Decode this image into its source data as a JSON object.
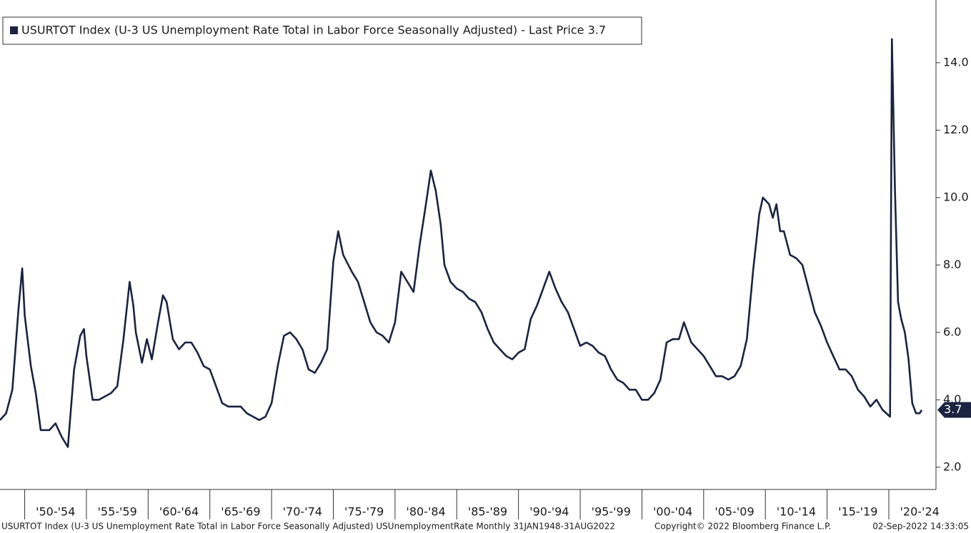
{
  "chart_data": {
    "type": "line",
    "legend_text": "USURTOT Index (U-3 US Unemployment Rate Total in Labor Force Seasonally Adjusted) - Last Price 3.7",
    "footer_left": "USURTOT Index (U-3 US Unemployment Rate Total in Labor Force Seasonally Adjusted) USUnemploymentRate  Monthly 31JAN1948-31AUG2022",
    "footer_mid": "Copyright© 2022 Bloomberg Finance L.P.",
    "footer_right": "02-Sep-2022 14:33:05",
    "last_price_label": "3.7",
    "color": "#1b2340",
    "xlim": [
      1948.0,
      2025.5
    ],
    "ylim": [
      1.34,
      15.86
    ],
    "xticks": [
      {
        "value": 1950,
        "label": "'50-'54"
      },
      {
        "value": 1955,
        "label": "'55-'59"
      },
      {
        "value": 1960,
        "label": "'60-'64"
      },
      {
        "value": 1965,
        "label": "'65-'69"
      },
      {
        "value": 1970,
        "label": "'70-'74"
      },
      {
        "value": 1975,
        "label": "'75-'79"
      },
      {
        "value": 1980,
        "label": "'80-'84"
      },
      {
        "value": 1985,
        "label": "'85-'89"
      },
      {
        "value": 1990,
        "label": "'90-'94"
      },
      {
        "value": 1995,
        "label": "'95-'99"
      },
      {
        "value": 2000,
        "label": "'00-'04"
      },
      {
        "value": 2005,
        "label": "'05-'09"
      },
      {
        "value": 2010,
        "label": "'10-'14"
      },
      {
        "value": 2015,
        "label": "'15-'19"
      },
      {
        "value": 2020,
        "label": "'20-'24"
      }
    ],
    "yticks": [
      {
        "value": 2,
        "label": "2.0"
      },
      {
        "value": 4,
        "label": "4.0"
      },
      {
        "value": 6,
        "label": "6.0"
      },
      {
        "value": 8,
        "label": "8.0"
      },
      {
        "value": 10,
        "label": "10.0"
      },
      {
        "value": 12,
        "label": "12.0"
      },
      {
        "value": 14,
        "label": "14.0"
      }
    ],
    "x": [
      1948.0,
      1948.5,
      1949.0,
      1949.5,
      1949.8,
      1950.0,
      1950.5,
      1950.9,
      1951.3,
      1952.0,
      1952.5,
      1953.0,
      1953.5,
      1954.0,
      1954.5,
      1954.8,
      1955.0,
      1955.5,
      1956.0,
      1956.5,
      1957.0,
      1957.5,
      1958.0,
      1958.5,
      1958.8,
      1959.0,
      1959.5,
      1959.9,
      1960.3,
      1960.8,
      1961.2,
      1961.5,
      1962.0,
      1962.5,
      1963.0,
      1963.5,
      1964.0,
      1964.5,
      1965.0,
      1965.5,
      1966.0,
      1966.5,
      1967.0,
      1967.5,
      1968.0,
      1968.5,
      1969.0,
      1969.5,
      1970.0,
      1970.5,
      1971.0,
      1971.5,
      1972.0,
      1972.5,
      1973.0,
      1973.5,
      1974.0,
      1974.5,
      1975.0,
      1975.4,
      1975.8,
      1976.5,
      1977.0,
      1977.5,
      1978.0,
      1978.5,
      1979.0,
      1979.5,
      1980.0,
      1980.5,
      1981.0,
      1981.5,
      1982.0,
      1982.5,
      1982.9,
      1983.3,
      1983.7,
      1984.0,
      1984.5,
      1985.0,
      1985.5,
      1986.0,
      1986.5,
      1987.0,
      1987.5,
      1988.0,
      1988.5,
      1989.0,
      1989.5,
      1990.0,
      1990.5,
      1991.0,
      1991.5,
      1992.0,
      1992.5,
      1993.0,
      1993.5,
      1994.0,
      1994.5,
      1995.0,
      1995.5,
      1996.0,
      1996.5,
      1997.0,
      1997.5,
      1998.0,
      1998.5,
      1999.0,
      1999.5,
      2000.0,
      2000.5,
      2001.0,
      2001.5,
      2002.0,
      2002.5,
      2003.0,
      2003.4,
      2004.0,
      2004.5,
      2005.0,
      2005.5,
      2006.0,
      2006.5,
      2007.0,
      2007.5,
      2008.0,
      2008.5,
      2009.0,
      2009.5,
      2009.8,
      2010.3,
      2010.6,
      2010.9,
      2011.2,
      2011.5,
      2012.0,
      2012.5,
      2013.0,
      2013.5,
      2014.0,
      2014.5,
      2015.0,
      2015.5,
      2016.0,
      2016.5,
      2017.0,
      2017.5,
      2018.0,
      2018.5,
      2019.0,
      2019.5,
      2020.1,
      2020.25,
      2020.5,
      2020.75,
      2021.0,
      2021.3,
      2021.6,
      2021.9,
      2022.2,
      2022.5,
      2022.67
    ],
    "values": [
      3.4,
      3.6,
      4.3,
      6.7,
      7.9,
      6.5,
      5.0,
      4.2,
      3.1,
      3.1,
      3.3,
      2.9,
      2.6,
      4.9,
      5.9,
      6.1,
      5.3,
      4.0,
      4.0,
      4.1,
      4.2,
      4.4,
      5.8,
      7.5,
      6.8,
      6.0,
      5.1,
      5.8,
      5.2,
      6.3,
      7.1,
      6.9,
      5.8,
      5.5,
      5.7,
      5.7,
      5.4,
      5.0,
      4.9,
      4.4,
      3.9,
      3.8,
      3.8,
      3.8,
      3.6,
      3.5,
      3.4,
      3.5,
      3.9,
      5.0,
      5.9,
      6.0,
      5.8,
      5.5,
      4.9,
      4.8,
      5.1,
      5.5,
      8.1,
      9.0,
      8.3,
      7.8,
      7.5,
      6.9,
      6.3,
      6.0,
      5.9,
      5.7,
      6.3,
      7.8,
      7.5,
      7.2,
      8.6,
      9.8,
      10.8,
      10.2,
      9.2,
      8.0,
      7.5,
      7.3,
      7.2,
      7.0,
      6.9,
      6.6,
      6.1,
      5.7,
      5.5,
      5.3,
      5.2,
      5.4,
      5.5,
      6.4,
      6.8,
      7.3,
      7.8,
      7.3,
      6.9,
      6.6,
      6.1,
      5.6,
      5.7,
      5.6,
      5.4,
      5.3,
      4.9,
      4.6,
      4.5,
      4.3,
      4.3,
      4.0,
      4.0,
      4.2,
      4.6,
      5.7,
      5.8,
      5.8,
      6.3,
      5.7,
      5.5,
      5.3,
      5.0,
      4.7,
      4.7,
      4.6,
      4.7,
      5.0,
      5.8,
      7.8,
      9.5,
      10.0,
      9.8,
      9.4,
      9.8,
      9.0,
      9.0,
      8.3,
      8.2,
      8.0,
      7.3,
      6.6,
      6.2,
      5.7,
      5.3,
      4.9,
      4.9,
      4.7,
      4.3,
      4.1,
      3.8,
      4.0,
      3.7,
      3.5,
      14.7,
      10.2,
      6.9,
      6.4,
      6.0,
      5.2,
      3.9,
      3.6,
      3.6,
      3.7
    ]
  }
}
